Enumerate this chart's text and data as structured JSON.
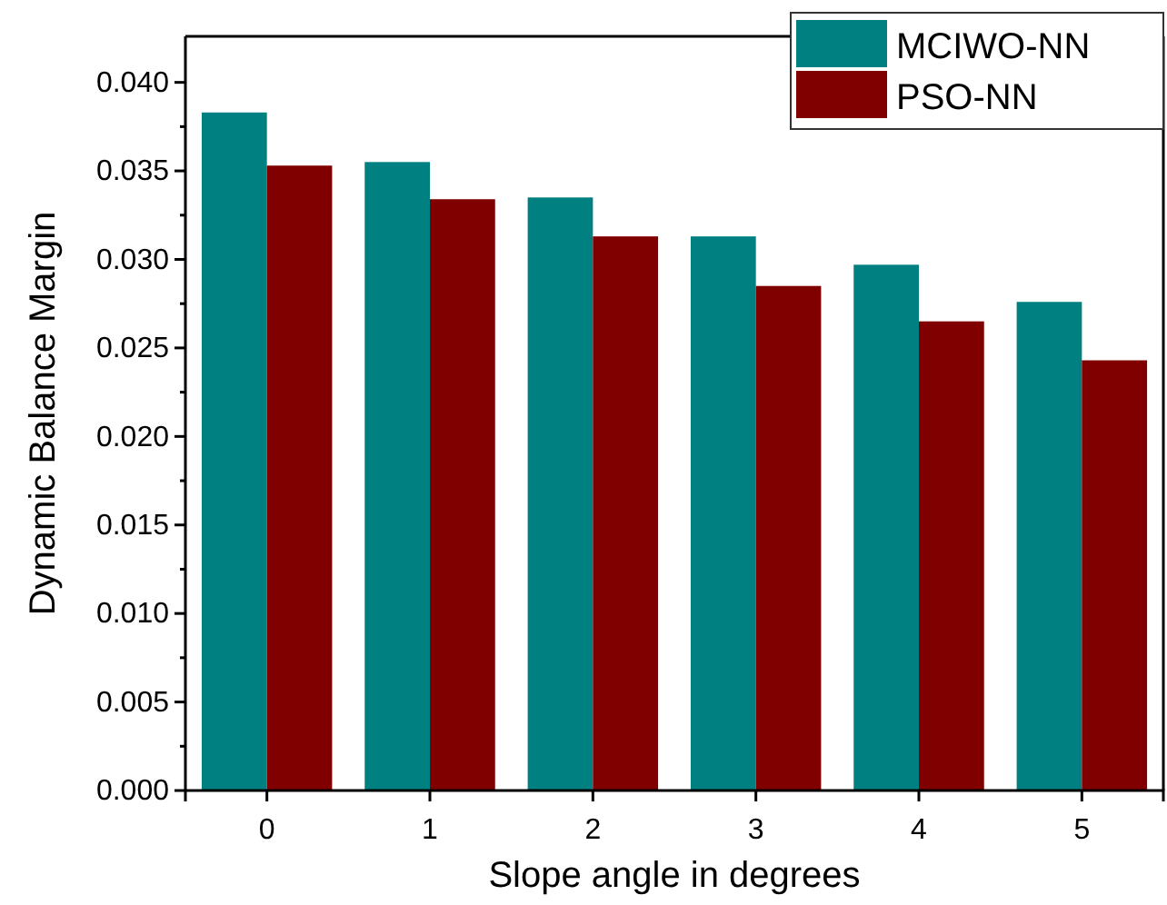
{
  "chart_data": {
    "type": "bar",
    "xlabel": "Slope angle in degrees",
    "ylabel": "Dynamic Balance Margin",
    "categories": [
      "0",
      "1",
      "2",
      "3",
      "4",
      "5"
    ],
    "series": [
      {
        "name": "MCIWO-NN",
        "color": "#008080",
        "values": [
          0.0383,
          0.0355,
          0.0335,
          0.0313,
          0.0297,
          0.0276
        ]
      },
      {
        "name": "PSO-NN",
        "color": "#800000",
        "values": [
          0.0353,
          0.0334,
          0.0313,
          0.0285,
          0.0265,
          0.0243
        ]
      }
    ],
    "ylim": [
      0,
      0.0426
    ],
    "yticks": [
      {
        "value": 0,
        "label": "0.000"
      },
      {
        "value": 0.0025,
        "label": null
      },
      {
        "value": 0.005,
        "label": "0.005"
      },
      {
        "value": 0.0075,
        "label": null
      },
      {
        "value": 0.01,
        "label": "0.010"
      },
      {
        "value": 0.0125,
        "label": null
      },
      {
        "value": 0.015,
        "label": "0.015"
      },
      {
        "value": 0.0175,
        "label": null
      },
      {
        "value": 0.02,
        "label": "0.020"
      },
      {
        "value": 0.0225,
        "label": null
      },
      {
        "value": 0.025,
        "label": "0.025"
      },
      {
        "value": 0.0275,
        "label": null
      },
      {
        "value": 0.03,
        "label": "0.030"
      },
      {
        "value": 0.0325,
        "label": null
      },
      {
        "value": 0.035,
        "label": "0.035"
      },
      {
        "value": 0.0375,
        "label": null
      },
      {
        "value": 0.04,
        "label": "0.040"
      }
    ],
    "legend": "top right",
    "grid": false
  }
}
